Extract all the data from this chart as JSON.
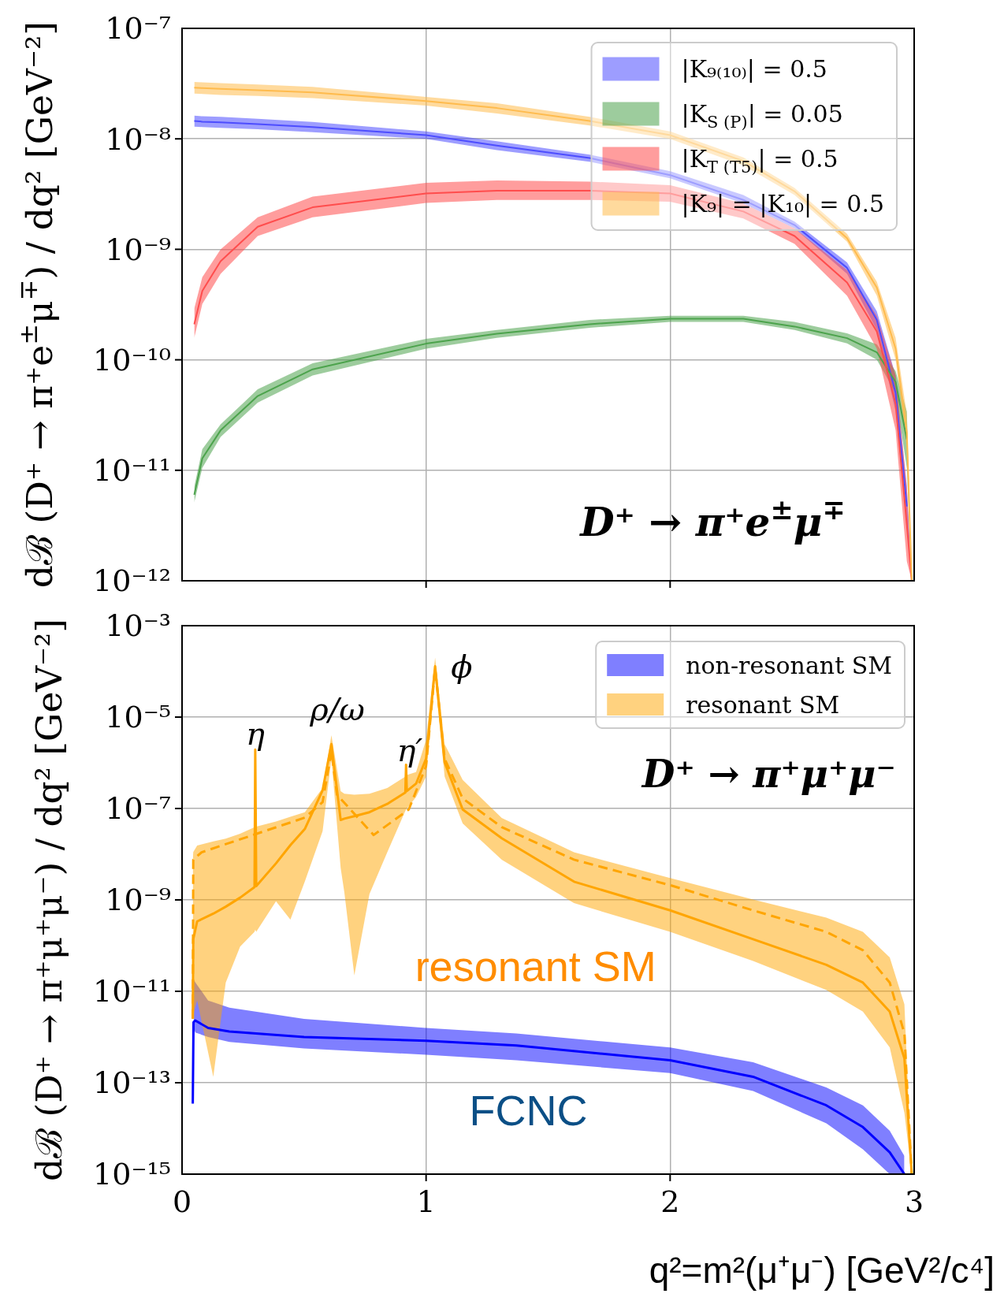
{
  "chart_data": [
    {
      "type": "line",
      "ylabel": "dℬ (D⁺ → π⁺e$^{±}$μ$^{∓}$) / dq² [GeV⁻²]",
      "log": "y",
      "grid": true,
      "legend": "top right",
      "tick_labels": "y",
      "xlim": [
        0,
        3
      ],
      "xticks": [
        0,
        1,
        2,
        3
      ],
      "ylim": [
        1e-12,
        1e-07
      ],
      "yticks": [
        {
          "value": 1e-12,
          "label": "10⁻¹²"
        },
        {
          "value": 1e-11,
          "label": "10⁻¹¹"
        },
        {
          "value": 1e-10,
          "label": "10⁻¹⁰"
        },
        {
          "value": 1e-09,
          "label": "10⁻⁹"
        },
        {
          "value": 1e-08,
          "label": "10⁻⁸"
        },
        {
          "value": 1e-07,
          "label": "10⁻⁷"
        }
      ],
      "annotations": [
        "D⁺ → π⁺e$^{±}$μ$^{∓}$"
      ],
      "x": [
        0.05,
        0.083,
        0.158,
        0.31,
        0.535,
        1.0,
        1.29,
        1.67,
        2.0,
        2.3,
        2.51,
        2.725,
        2.847,
        2.924,
        2.97,
        2.99
      ],
      "series": [
        {
          "name": "|K₉₍₁₀₎| = 0.5",
          "color": "#4d4dff",
          "values": [
            1.45e-08,
            1.43e-08,
            1.41e-08,
            1.36e-08,
            1.28e-08,
            1.08e-08,
            8.7e-09,
            6.7e-09,
            4.7e-09,
            2.8e-09,
            1.66e-09,
            6.8e-10,
            2.3e-10,
            5e-11,
            4.7e-12,
            null
          ],
          "upper": [
            1.62e-08,
            1.6e-08,
            1.58e-08,
            1.52e-08,
            1.42e-08,
            1.17e-08,
            9.5e-09,
            7.2e-09,
            5.1e-09,
            3.1e-09,
            1.78e-09,
            7.6e-10,
            2.75e-10,
            7.2e-11,
            7.1e-12,
            1e-12
          ],
          "lower": [
            1.29e-08,
            1.28e-08,
            1.26e-08,
            1.22e-08,
            1.15e-08,
            1e-08,
            7.9e-09,
            6.2e-09,
            4.4e-09,
            2.6e-09,
            1.55e-09,
            6e-10,
            1.86e-10,
            3.4e-11,
            3.2e-12,
            1e-12
          ]
        },
        {
          "name": "|K$_{S (P)}$| = 0.05",
          "color": "#4ca34c",
          "values": [
            6e-12,
            1.28e-11,
            2.3e-11,
            4.7e-11,
            8.2e-11,
            1.4e-10,
            1.72e-10,
            2.1e-10,
            2.35e-10,
            2.35e-10,
            2e-10,
            1.57e-10,
            1.17e-10,
            6.3e-11,
            1.9e-11,
            null
          ],
          "upper": [
            7.1e-12,
            1.55e-11,
            2.6e-11,
            5.4e-11,
            9.3e-11,
            1.55e-10,
            1.86e-10,
            2.3e-10,
            2.5e-10,
            2.5e-10,
            2.2e-10,
            1.74e-10,
            1.38e-10,
            7.9e-11,
            3.4e-11,
            1e-12
          ],
          "lower": [
            5.1e-12,
            1.05e-11,
            2e-11,
            4.1e-11,
            7.2e-11,
            1.26e-10,
            1.58e-10,
            1.95e-10,
            2.2e-10,
            2.2e-10,
            1.86e-10,
            1.41e-10,
            1e-10,
            5e-11,
            1.05e-11,
            1e-12
          ]
        },
        {
          "name": "|K$_{T (T5)}$| = 0.5",
          "color": "#ff4d4d",
          "values": [
            2.1e-10,
            4.2e-10,
            7.8e-10,
            1.6e-09,
            2.4e-09,
            3.2e-09,
            3.4e-09,
            3.4e-09,
            3.2e-09,
            2.2e-09,
            1.32e-09,
            5e-10,
            1.8e-10,
            4e-11,
            3.2e-12,
            1e-12
          ],
          "upper": [
            2.9e-10,
            5.6e-10,
            1e-09,
            1.95e-09,
            3e-09,
            4e-09,
            4.2e-09,
            4.1e-09,
            3.8e-09,
            2.6e-09,
            1.55e-09,
            6.5e-10,
            2.5e-10,
            7.2e-11,
            7.1e-12,
            1e-12
          ],
          "lower": [
            1.58e-10,
            3.2e-10,
            6e-10,
            1.32e-09,
            1.95e-09,
            2.63e-09,
            2.8e-09,
            2.8e-09,
            2.7e-09,
            1.9e-09,
            1.12e-09,
            3.8e-10,
            1.26e-10,
            2.3e-11,
            1.5e-12,
            1e-12
          ]
        },
        {
          "name": "|K₉| = |K₁₀| = 0.5",
          "color": "#ffbb4d",
          "values": [
            2.9e-08,
            2.88e-08,
            2.83e-08,
            2.75e-08,
            2.63e-08,
            2.2e-08,
            1.9e-08,
            1.45e-08,
            1.08e-08,
            6.3e-09,
            3.35e-09,
            1.26e-09,
            4.5e-10,
            1.26e-10,
            2.2e-11,
            1e-12
          ],
          "upper": [
            3.27e-08,
            3.25e-08,
            3.2e-08,
            3.1e-08,
            2.95e-08,
            2.4e-08,
            2.1e-08,
            1.58e-08,
            1.17e-08,
            6.8e-09,
            3.6e-09,
            1.38e-09,
            5.1e-10,
            1.58e-10,
            3.2e-11,
            1e-12
          ],
          "lower": [
            2.57e-08,
            2.55e-08,
            2.5e-08,
            2.45e-08,
            2.34e-08,
            2e-08,
            1.7e-08,
            1.32e-08,
            1e-08,
            5.75e-09,
            3.1e-09,
            1.17e-09,
            3.8e-10,
            1e-10,
            1.6e-11,
            1e-12
          ]
        }
      ]
    },
    {
      "type": "line",
      "xlabel": "q²=m²(μ⁺μ⁻) [GeV²/c⁴]",
      "ylabel": "dℬ (D⁺ → π⁺μ⁺μ⁻) / dq² [GeV⁻²]",
      "log": "y",
      "grid": true,
      "legend": "top right",
      "xlim": [
        0,
        3
      ],
      "xticks": [
        0,
        1,
        2,
        3
      ],
      "ylim": [
        1e-15,
        0.001
      ],
      "yticks": [
        {
          "value": 1e-15,
          "label": "10⁻¹⁵"
        },
        {
          "value": 1e-13,
          "label": "10⁻¹³"
        },
        {
          "value": 1e-11,
          "label": "10⁻¹¹"
        },
        {
          "value": 1e-09,
          "label": "10⁻⁹"
        },
        {
          "value": 1e-07,
          "label": "10⁻⁷"
        },
        {
          "value": 1e-05,
          "label": "10⁻⁵"
        },
        {
          "value": 0.001,
          "label": "10⁻³"
        }
      ],
      "annotations": [
        "D⁺ → π⁺μ⁺μ⁻",
        "η",
        "ρ/ω",
        "η′",
        "ϕ",
        "resonant SM",
        "FCNC"
      ],
      "series": [
        {
          "name": "non-resonant SM",
          "color": "#0000ff",
          "x": [
            0.044,
            0.047,
            0.054,
            0.107,
            0.194,
            0.5,
            1.0,
            1.37,
            2.0,
            2.34,
            2.64,
            2.79,
            2.9,
            2.96
          ],
          "values": [
            3.5e-14,
            2.1e-12,
            2.3e-12,
            1.58e-12,
            1.32e-12,
            1e-12,
            8.3e-13,
            6.5e-13,
            3.1e-13,
            1.35e-13,
            3.2e-14,
            1.07e-14,
            3e-15,
            1e-15
          ],
          "upper": [
            null,
            1.86e-11,
            1.58e-11,
            6.3e-12,
            4.4e-12,
            2.5e-12,
            1.58e-12,
            1.2e-12,
            5.9e-13,
            2.8e-13,
            7.9e-14,
            3.2e-14,
            8.9e-15,
            2.5e-15
          ],
          "lower": [
            null,
            1.74e-12,
            1.26e-12,
            1e-12,
            7.8e-13,
            5.6e-13,
            4.1e-13,
            3.1e-13,
            1.62e-13,
            6.6e-14,
            1.29e-14,
            3.5e-15,
            1e-15,
            1e-15
          ]
        },
        {
          "name": "resonant SM",
          "color": "#ffa500",
          "x": [
            0.044,
            0.046,
            0.062,
            0.128,
            0.179,
            0.238,
            0.297,
            0.3,
            0.304,
            0.385,
            0.444,
            0.503,
            0.576,
            0.612,
            0.65,
            0.665,
            0.706,
            0.768,
            0.841,
            0.915,
            0.918,
            0.921,
            0.959,
            1.0,
            1.037,
            1.076,
            1.15,
            1.31,
            1.606,
            2.0,
            2.34,
            2.64,
            2.79,
            2.9,
            2.96,
            2.99
          ],
          "values": [
            2.51e-12,
            1.38e-10,
            3.39e-10,
            5e-10,
            7.1e-10,
            1.12e-09,
            1.9e-09,
            1.95e-06,
            2e-09,
            6.3e-09,
            1.58e-08,
            3.55e-08,
            2.51e-07,
            2.57e-06,
            5.6e-08,
            6e-08,
            6.8e-08,
            8.3e-08,
            1.26e-07,
            2.24e-07,
            9.1e-07,
            2.4e-07,
            3.5e-07,
            1.23e-06,
            0.000129,
            1.02e-06,
            9.5e-08,
            2.24e-08,
            2.51e-09,
            5.9e-10,
            1.38e-10,
            3.8e-11,
            1.55e-11,
            3.6e-12,
            3.4e-13,
            1e-15
          ],
          "upper": [
            7.6e-09,
            1.12e-08,
            1.55e-08,
            1.9e-08,
            2.2e-08,
            2.8e-08,
            3.9e-08,
            3.9e-08,
            4e-08,
            5.2e-08,
            6.6e-08,
            8.3e-08,
            2.8e-07,
            4e-06,
            2.4e-07,
            2.1e-07,
            2e-07,
            2.1e-07,
            2.8e-07,
            5e-07,
            5.2e-07,
            5.4e-07,
            6.3e-07,
            3.2e-06,
            0.0002,
            2.57e-06,
            4.2e-07,
            6.2e-08,
            1.1e-08,
            3e-09,
            1.02e-09,
            4.1e-10,
            2e-10,
            5.5e-11,
            5.2e-12,
            1e-15
          ],
          "lower": [
            2.51e-12,
            3.2e-12,
            6.3e-12,
            1.35e-13,
            1.55e-11,
            9.5e-11,
            2e-10,
            2.24e-10,
            2e-10,
            9.3e-10,
            3.7e-10,
            2.51e-09,
            3.2e-08,
            1.23e-06,
            5e-09,
            1.48e-09,
            2.24e-11,
            1.35e-09,
            1.1e-08,
            8.9e-08,
            9.5e-08,
            1e-07,
            1.78e-07,
            5e-07,
            6.8e-05,
            5e-07,
            4.7e-08,
            7.6e-09,
            8.5e-10,
            2e-10,
            4.6e-11,
            1.07e-11,
            3.6e-12,
            5.9e-13,
            2.2e-14,
            1e-15
          ]
        },
        {
          "color": "#ffa500",
          "line_style": "dashed",
          "x": [
            0.044,
            0.046,
            0.08,
            0.297,
            0.503,
            0.576,
            0.612,
            0.635,
            0.785,
            0.929,
            1.0,
            1.037,
            1.076,
            1.15,
            1.31,
            1.606,
            2.0,
            2.34,
            2.64,
            2.79,
            2.9,
            2.96,
            2.99
          ],
          "values": [
            2.51e-12,
            7.6e-09,
            1.1e-08,
            2.7e-08,
            6.3e-08,
            1.38e-07,
            1.78e-06,
            2e-07,
            2.63e-08,
            9.5e-08,
            8.5e-07,
            0.000117,
            1.23e-06,
            1.66e-07,
            3.9e-08,
            7.6e-09,
            2.1e-09,
            5.9e-10,
            2e-10,
            7.9e-11,
            1.55e-11,
            1.2e-12,
            1e-15
          ]
        }
      ]
    }
  ]
}
